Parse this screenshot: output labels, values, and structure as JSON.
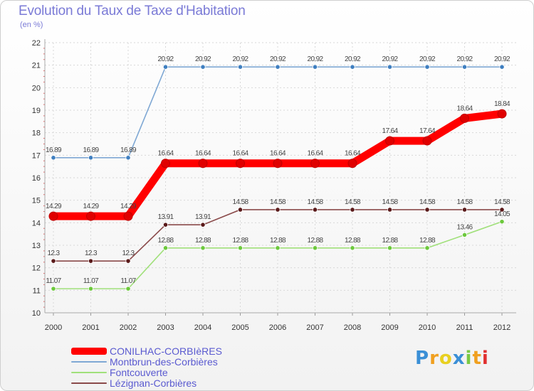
{
  "title": "Evolution du Taux de Taxe d'Habitation",
  "subtitle": "(en %)",
  "chart_data": {
    "type": "line",
    "title": "Evolution du Taux de Taxe d'Habitation",
    "ylabel": "(en %)",
    "xlabel": "",
    "ylim": [
      10,
      22
    ],
    "yticks": [
      "10",
      "11",
      "12",
      "13",
      "14",
      "15",
      "16",
      "17",
      "18",
      "19",
      "20",
      "21",
      "22"
    ],
    "categories": [
      "2000",
      "2001",
      "2002",
      "2003",
      "2004",
      "2005",
      "2006",
      "2007",
      "2008",
      "2009",
      "2010",
      "2011",
      "2012"
    ],
    "series": [
      {
        "name": "CONILHAC-CORBIèRES",
        "color": "#ff0000",
        "marker": "#e00000",
        "values": [
          14.29,
          14.29,
          14.29,
          16.64,
          16.64,
          16.64,
          16.64,
          16.64,
          16.64,
          17.64,
          17.64,
          18.64,
          18.84
        ],
        "labels": [
          "14.29",
          "14.29",
          "14.29",
          "16.64",
          "16.64",
          "16.64",
          "16.64",
          "16.64",
          "16.64",
          "17.64",
          "17.64",
          "18.64",
          "18.84"
        ]
      },
      {
        "name": "Montbrun-des-Corbières",
        "color": "#7fa8d4",
        "marker": "#3f7fc0",
        "values": [
          16.89,
          16.89,
          16.89,
          20.92,
          20.92,
          20.92,
          20.92,
          20.92,
          20.92,
          20.92,
          20.92,
          20.92,
          20.92
        ],
        "labels": [
          "16.89",
          "16.89",
          "16.89",
          "20.92",
          "20.92",
          "20.92",
          "20.92",
          "20.92",
          "20.92",
          "20.92",
          "20.92",
          "20.92",
          "20.92"
        ]
      },
      {
        "name": "Fontcouverte",
        "color": "#a0e07a",
        "marker": "#6cc83c",
        "values": [
          11.07,
          11.07,
          11.07,
          12.88,
          12.88,
          12.88,
          12.88,
          12.88,
          12.88,
          12.88,
          12.88,
          13.46,
          14.05
        ],
        "labels": [
          "11.07",
          "11.07",
          "11.07",
          "12.88",
          "12.88",
          "12.88",
          "12.88",
          "12.88",
          "12.88",
          "12.88",
          "12.88",
          "13.46",
          "14.05"
        ]
      },
      {
        "name": "Lézignan-Corbières",
        "color": "#8a4a4a",
        "marker": "#5a1a1a",
        "values": [
          12.3,
          12.3,
          12.3,
          13.91,
          13.91,
          14.58,
          14.58,
          14.58,
          14.58,
          14.58,
          14.58,
          14.58,
          14.58
        ],
        "labels": [
          "12.3",
          "12.3",
          "12.3",
          "13.91",
          "13.91",
          "14.58",
          "14.58",
          "14.58",
          "14.58",
          "14.58",
          "14.58",
          "14.58",
          "14.58"
        ]
      }
    ]
  },
  "legend": {
    "items": [
      "CONILHAC-CORBIèRES",
      "Montbrun-des-Corbières",
      "Fontcouverte",
      "Lézignan-Corbières"
    ]
  },
  "logo": {
    "letters": [
      "P",
      "r",
      "o",
      "x",
      "i",
      "t",
      "i"
    ],
    "colors": [
      "#3a8fd6",
      "#f0a020",
      "#e8d020",
      "#3a8fd6",
      "#7ac943",
      "#f0a020",
      "#e03030"
    ]
  }
}
